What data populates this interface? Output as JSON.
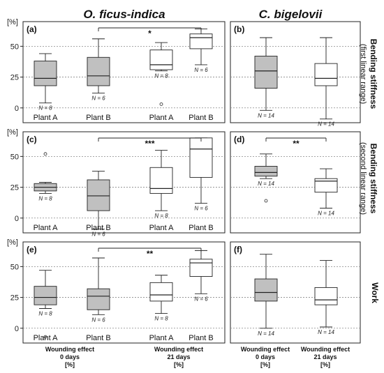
{
  "column_titles": [
    "O. ficus-indica",
    "C. bigelovii"
  ],
  "row_titles": [
    {
      "main": "Bending stiffness",
      "sub": "(first linear range)"
    },
    {
      "main": "Bending stiffness",
      "sub": "(second linear range)"
    },
    {
      "main": "Work",
      "sub": ""
    }
  ],
  "y_unit_label": "[%]",
  "y_ticks": [
    0,
    25,
    50
  ],
  "group_labels": {
    "left": [
      {
        "lines": [
          "Wounding effect",
          "0 days",
          "[%]"
        ]
      },
      {
        "lines": [
          "Wounding effect",
          "21 days",
          "[%]"
        ]
      }
    ],
    "right": [
      {
        "lines": [
          "Wounding effect",
          "0 days",
          "[%]"
        ]
      },
      {
        "lines": [
          "Wounding effect",
          "21 days",
          "[%]"
        ]
      }
    ]
  },
  "colors": {
    "filled": "#c0c0c0",
    "open": "#ffffff"
  },
  "chart_data": [
    {
      "panel": "(a)",
      "type": "box",
      "ylim": [
        -12,
        70
      ],
      "categories": [
        "Plant A",
        "Plant B",
        "Plant A",
        "Plant B"
      ],
      "boxes": [
        {
          "label": "Plant A",
          "min": 4,
          "q1": 18,
          "median": 24,
          "q3": 38,
          "max": 44,
          "n_label": "N = 8",
          "filled": true,
          "outliers": []
        },
        {
          "label": "Plant B",
          "min": 12,
          "q1": 18,
          "median": 26,
          "q3": 41,
          "max": 56,
          "n_label": "N = 6",
          "filled": true,
          "outliers": []
        },
        {
          "label": "Plant A",
          "min": 30,
          "q1": 31,
          "median": 35,
          "q3": 47,
          "max": 53,
          "n_label": "N = 8",
          "filled": false,
          "outliers": [
            3
          ]
        },
        {
          "label": "Plant B",
          "min": 35,
          "q1": 48,
          "median": 57,
          "q3": 60,
          "max": 64,
          "n_label": "N = 6",
          "filled": false,
          "outliers": []
        }
      ],
      "significance": {
        "from": 1,
        "to": 3,
        "label": "*"
      }
    },
    {
      "panel": "(b)",
      "type": "box",
      "ylim": [
        -12,
        70
      ],
      "categories": [
        "",
        ""
      ],
      "boxes": [
        {
          "label": "",
          "min": -2,
          "q1": 16,
          "median": 30,
          "q3": 42,
          "max": 57,
          "n_label": "N = 14",
          "filled": true,
          "outliers": []
        },
        {
          "label": "",
          "min": -9,
          "q1": 18,
          "median": 24,
          "q3": 36,
          "max": 57,
          "n_label": "N = 14",
          "filled": false,
          "outliers": []
        }
      ],
      "significance": null
    },
    {
      "panel": "(c)",
      "type": "box",
      "ylim": [
        -12,
        70
      ],
      "categories": [
        "Plant A",
        "Plant B",
        "Plant A",
        "Plant B"
      ],
      "boxes": [
        {
          "label": "Plant A",
          "min": 20,
          "q1": 22,
          "median": 25,
          "q3": 28,
          "max": 29,
          "n_label": "N = 8",
          "filled": true,
          "outliers": [
            52
          ]
        },
        {
          "label": "Plant B",
          "min": -9,
          "q1": 6,
          "median": 18,
          "q3": 31,
          "max": 38,
          "n_label": "N = 6",
          "filled": true,
          "outliers": []
        },
        {
          "label": "Plant A",
          "min": 6,
          "q1": 20,
          "median": 24,
          "q3": 41,
          "max": 55,
          "n_label": "N = 8",
          "filled": false,
          "outliers": []
        },
        {
          "label": "Plant B",
          "min": 12,
          "q1": 33,
          "median": 56,
          "q3": 65,
          "max": 65,
          "n_label": "N = 6",
          "filled": false,
          "outliers": []
        }
      ],
      "significance": {
        "from": 1,
        "to": 3,
        "label": "***"
      }
    },
    {
      "panel": "(d)",
      "type": "box",
      "ylim": [
        -12,
        70
      ],
      "categories": [
        "",
        ""
      ],
      "boxes": [
        {
          "label": "",
          "min": 32,
          "q1": 34,
          "median": 37,
          "q3": 42,
          "max": 52,
          "n_label": "N = 14",
          "filled": true,
          "outliers": [
            14
          ]
        },
        {
          "label": "",
          "min": 8,
          "q1": 21,
          "median": 30,
          "q3": 32,
          "max": 40,
          "n_label": "N = 14",
          "filled": false,
          "outliers": []
        }
      ],
      "significance": {
        "from": 0,
        "to": 1,
        "label": "**"
      }
    },
    {
      "panel": "(e)",
      "type": "box",
      "ylim": [
        -12,
        70
      ],
      "categories": [
        "Plant A",
        "Plant B",
        "Plant A",
        "Plant B"
      ],
      "boxes": [
        {
          "label": "Plant A",
          "min": 16,
          "q1": 19,
          "median": 25,
          "q3": 34,
          "max": 47,
          "n_label": "N = 8",
          "filled": true,
          "outliers": [
            -7
          ]
        },
        {
          "label": "Plant B",
          "min": 11,
          "q1": 15,
          "median": 26,
          "q3": 32,
          "max": 57,
          "n_label": "N = 6",
          "filled": true,
          "outliers": []
        },
        {
          "label": "Plant A",
          "min": 12,
          "q1": 22,
          "median": 27,
          "q3": 37,
          "max": 43,
          "n_label": "N = 8",
          "filled": false,
          "outliers": []
        },
        {
          "label": "Plant B",
          "min": 28,
          "q1": 42,
          "median": 53,
          "q3": 56,
          "max": 63,
          "n_label": "N = 6",
          "filled": false,
          "outliers": []
        }
      ],
      "significance": {
        "from": 1,
        "to": 3,
        "label": "**"
      }
    },
    {
      "panel": "(f)",
      "type": "box",
      "ylim": [
        -12,
        70
      ],
      "categories": [
        "",
        ""
      ],
      "boxes": [
        {
          "label": "",
          "min": 0,
          "q1": 22,
          "median": 29,
          "q3": 40,
          "max": 60,
          "n_label": "N = 14",
          "filled": true,
          "outliers": []
        },
        {
          "label": "",
          "min": 1,
          "q1": 19,
          "median": 23,
          "q3": 33,
          "max": 55,
          "n_label": "N = 14",
          "filled": false,
          "outliers": []
        }
      ],
      "significance": null
    }
  ]
}
